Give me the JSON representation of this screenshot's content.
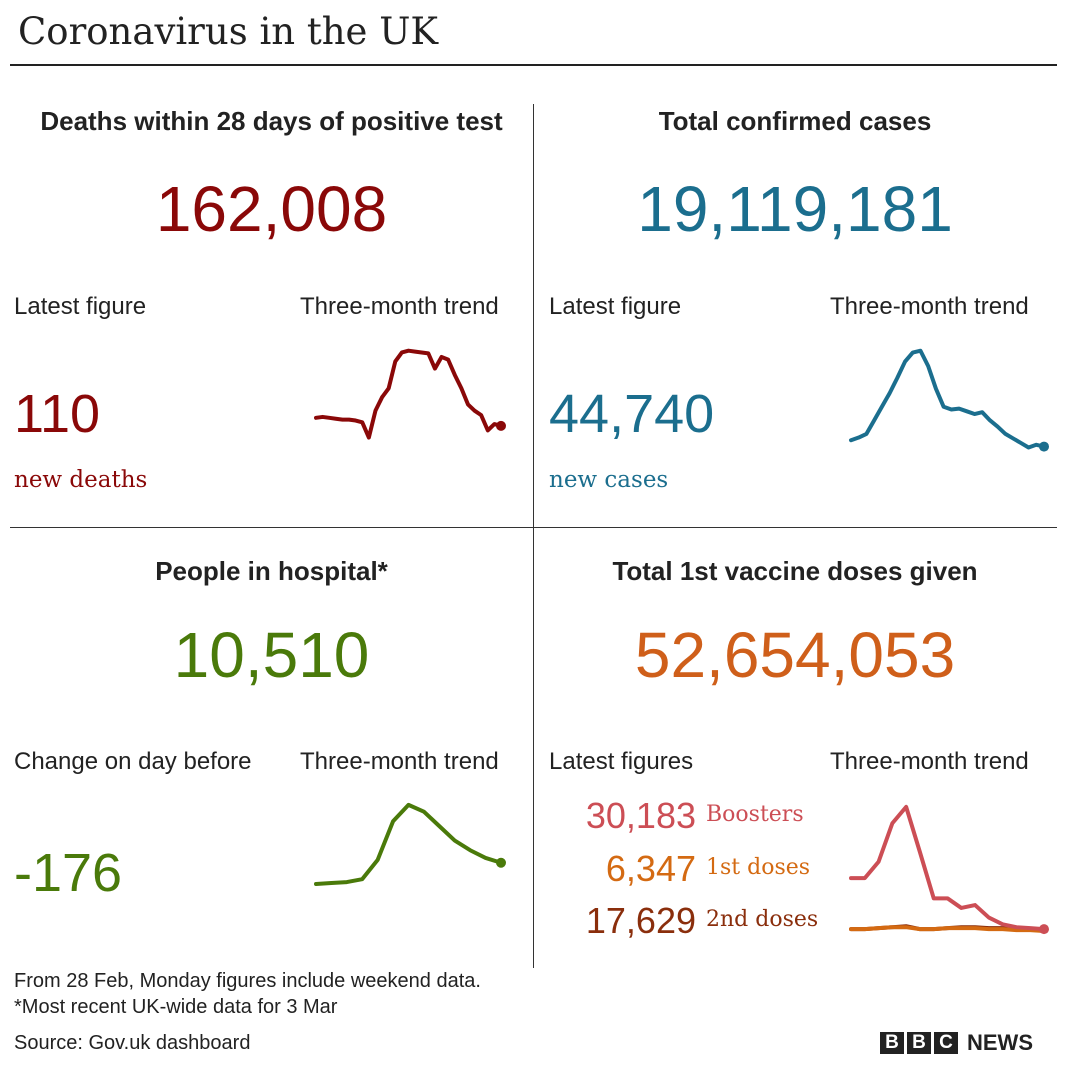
{
  "title": "Coronavirus in the UK",
  "colors": {
    "deaths": "#8a0808",
    "cases": "#1b6e8e",
    "hospital": "#4a7a0a",
    "vaccine": "#cf5f1a",
    "boosters": "#cc4e55",
    "first_doses": "#d46a12",
    "second_doses": "#8a2e0c"
  },
  "deaths": {
    "heading": "Deaths within 28 days of positive test",
    "total": "162,008",
    "latest_label": "Latest figure",
    "trend_label": "Three-month trend",
    "latest": "110",
    "latest_sub": "new deaths"
  },
  "cases": {
    "heading": "Total confirmed cases",
    "total": "19,119,181",
    "latest_label": "Latest figure",
    "trend_label": "Three-month trend",
    "latest": "44,740",
    "latest_sub": "new cases"
  },
  "hospital": {
    "heading": "People in hospital*",
    "total": "10,510",
    "latest_label": "Change on day before",
    "trend_label": "Three-month trend",
    "latest": "-176"
  },
  "vaccine": {
    "heading": "Total 1st vaccine doses given",
    "total": "52,654,053",
    "latest_label": "Latest figures",
    "trend_label": "Three-month trend",
    "rows": [
      {
        "value": "30,183",
        "label": "Boosters"
      },
      {
        "value": "6,347",
        "label": "1st doses"
      },
      {
        "value": "17,629",
        "label": "2nd doses"
      }
    ]
  },
  "footnotes": [
    "From 28 Feb, Monday figures include weekend data.",
    "*Most recent UK-wide data for 3 Mar"
  ],
  "source": "Source: Gov.uk dashboard",
  "logo": {
    "letters": [
      "B",
      "B",
      "C"
    ],
    "word": "NEWS"
  },
  "chart_data": [
    {
      "type": "line",
      "title": "Deaths three-month trend",
      "series": [
        {
          "name": "new deaths",
          "values": [
            27,
            28,
            27,
            26,
            25,
            25,
            24,
            22,
            5,
            35,
            50,
            60,
            90,
            100,
            102,
            101,
            100,
            99,
            82,
            95,
            92,
            75,
            60,
            42,
            35,
            30,
            13,
            20,
            18
          ]
        }
      ]
    },
    {
      "type": "line",
      "title": "Cases three-month trend",
      "series": [
        {
          "name": "new cases",
          "values": [
            13,
            16,
            20,
            35,
            50,
            65,
            82,
            100,
            110,
            112,
            95,
            70,
            50,
            47,
            48,
            45,
            42,
            44,
            35,
            28,
            20,
            15,
            10,
            5,
            8,
            6
          ]
        }
      ]
    },
    {
      "type": "line",
      "title": "Hospital three-month trend",
      "series": [
        {
          "name": "people in hospital",
          "values": [
            0,
            1,
            2,
            5,
            25,
            65,
            82,
            75,
            60,
            45,
            35,
            27,
            22
          ]
        }
      ]
    },
    {
      "type": "line",
      "title": "Vaccine three-month trend",
      "series": [
        {
          "name": "Boosters",
          "values": [
            53,
            53,
            70,
            110,
            127,
            80,
            32,
            32,
            22,
            25,
            12,
            5,
            2,
            1,
            0
          ]
        },
        {
          "name": "1st doses",
          "values": [
            0,
            0,
            1,
            2,
            2,
            0,
            0,
            1,
            1,
            1,
            0,
            0,
            -1,
            -1,
            -2
          ]
        },
        {
          "name": "2nd doses",
          "values": [
            0,
            0,
            1,
            2,
            3,
            0,
            0,
            1,
            2,
            2,
            1,
            1,
            1,
            0,
            0
          ]
        }
      ]
    }
  ]
}
